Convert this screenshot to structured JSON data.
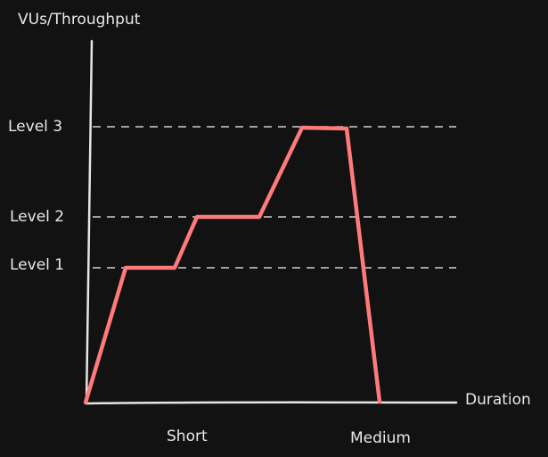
{
  "diagram": {
    "y_axis_label": "VUs/Throughput",
    "x_axis_label": "Duration",
    "levels": [
      {
        "label": "Level 1",
        "value": 1
      },
      {
        "label": "Level 2",
        "value": 2
      },
      {
        "label": "Level 3",
        "value": 3
      }
    ],
    "x_ticks": [
      {
        "label": "Short"
      },
      {
        "label": "Medium"
      }
    ],
    "colors": {
      "background": "#121212",
      "profile_line": "#ff7a7a",
      "axis": "#e6e6e6",
      "guide": "#cfcfcf",
      "text": "#e8e8e8"
    }
  }
}
